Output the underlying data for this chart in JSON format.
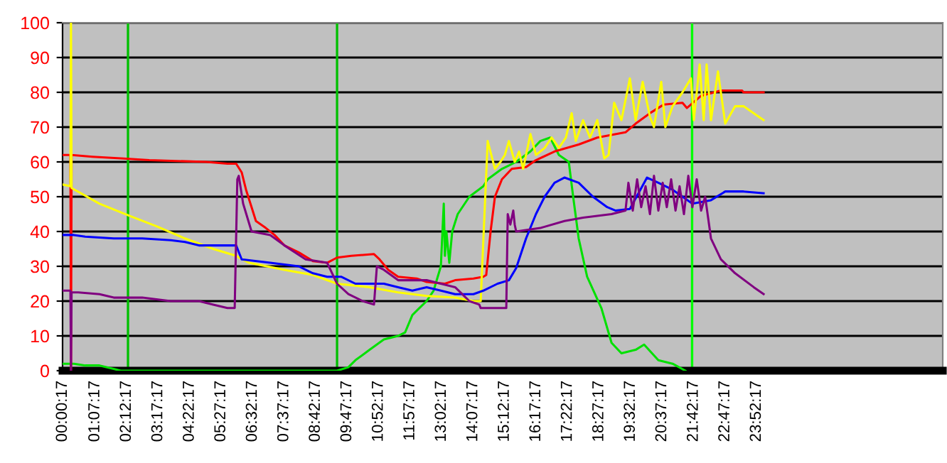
{
  "chart_data": {
    "type": "line",
    "xlim": [
      0,
      30.27
    ],
    "ylim": [
      0,
      100
    ],
    "xticks": [
      {
        "value": 0.00472,
        "label": "00:00:17"
      },
      {
        "value": 1.12139,
        "label": "01:07:17"
      },
      {
        "value": 2.20472,
        "label": "02:12:17"
      },
      {
        "value": 3.28806,
        "label": "03:17:17"
      },
      {
        "value": 4.37139,
        "label": "04:22:17"
      },
      {
        "value": 5.45472,
        "label": "05:27:17"
      },
      {
        "value": 6.53806,
        "label": "06:32:17"
      },
      {
        "value": 7.62139,
        "label": "07:37:17"
      },
      {
        "value": 8.70472,
        "label": "08:42:17"
      },
      {
        "value": 9.78806,
        "label": "09:47:17"
      },
      {
        "value": 10.87139,
        "label": "10:52:17"
      },
      {
        "value": 11.95472,
        "label": "11:57:17"
      },
      {
        "value": 13.03806,
        "label": "13:02:17"
      },
      {
        "value": 14.12139,
        "label": "14:07:17"
      },
      {
        "value": 15.20472,
        "label": "15:12:17"
      },
      {
        "value": 16.28806,
        "label": "16:17:17"
      },
      {
        "value": 17.37139,
        "label": "17:22:17"
      },
      {
        "value": 18.45472,
        "label": "18:27:17"
      },
      {
        "value": 19.53806,
        "label": "19:32:17"
      },
      {
        "value": 20.62139,
        "label": "20:37:17"
      },
      {
        "value": 21.70472,
        "label": "21:42:17"
      },
      {
        "value": 22.78806,
        "label": "22:47:17"
      },
      {
        "value": 23.87139,
        "label": "23:52:17"
      }
    ],
    "yticks": [
      0,
      10,
      20,
      30,
      40,
      50,
      60,
      70,
      80,
      90,
      100
    ],
    "grid": "y",
    "legend": false,
    "marker": "none",
    "line_style": "solid",
    "ref_lines": [
      {
        "axis": "x",
        "value": 2.25,
        "color": "#00c000"
      },
      {
        "axis": "x",
        "value": 9.44,
        "color": "#00c000"
      },
      {
        "axis": "x",
        "value": 21.65,
        "color": "#00ff00"
      }
    ],
    "series": [
      {
        "color": "#00e000",
        "x": [
          0,
          0.39,
          0.78,
          1.27,
          1.76,
          2.0,
          5.0,
          9.44,
          9.83,
          10.07,
          10.56,
          11.05,
          11.54,
          11.78,
          12.03,
          12.27,
          12.52,
          12.76,
          13.01,
          13.11,
          13.15,
          13.2,
          13.3,
          13.4,
          13.59,
          13.99,
          14.47,
          14.62,
          15.11,
          15.6,
          16.09,
          16.43,
          16.77,
          17.07,
          17.41,
          17.56,
          17.75,
          18.04,
          18.53,
          18.88,
          19.22,
          19.71,
          20.0,
          20.49,
          20.98,
          21.42
        ],
        "values": [
          2,
          2,
          1.5,
          1.5,
          0.5,
          0,
          0,
          0,
          1,
          3,
          6,
          9,
          10,
          11,
          16,
          18,
          20,
          23,
          30,
          48,
          33,
          40,
          31,
          40,
          45,
          50,
          53,
          55,
          58,
          60,
          63,
          66,
          67,
          62,
          60,
          50,
          38,
          27,
          18,
          8,
          5,
          6,
          7.5,
          3,
          2,
          0
        ]
      },
      {
        "color": "#ff0000",
        "x": [
          0,
          0.27,
          0.29,
          0.31,
          1.03,
          2.0,
          2.98,
          4.94,
          5.67,
          5.97,
          6.16,
          6.31,
          6.5,
          6.65,
          6.99,
          7.29,
          7.63,
          8.12,
          8.61,
          9.1,
          9.44,
          9.93,
          10.71,
          10.9,
          11.2,
          11.54,
          12.18,
          12.52,
          13.15,
          13.5,
          14.13,
          14.47,
          14.57,
          14.72,
          14.87,
          15.11,
          15.45,
          15.94,
          16.28,
          16.92,
          17.75,
          18.39,
          19.36,
          19.71,
          20.2,
          20.68,
          21.32,
          21.47,
          21.96,
          22.64,
          23.37,
          23.42,
          24.11
        ],
        "values": [
          62,
          62,
          0,
          62,
          61.5,
          61,
          60.5,
          60,
          59.5,
          59.5,
          57,
          52,
          47,
          43,
          41,
          39,
          36,
          34,
          31.5,
          31,
          32.5,
          33,
          33.5,
          32,
          29,
          27,
          26.5,
          25.5,
          25,
          26,
          26.5,
          27,
          27.5,
          40,
          50,
          55,
          58,
          58.5,
          60.5,
          63,
          65,
          67,
          68.5,
          71,
          74,
          76.5,
          77,
          75.5,
          79,
          80.5,
          80.5,
          80,
          80
        ]
      },
      {
        "color": "#ffff00",
        "x": [
          0,
          0.27,
          0.29,
          0.31,
          1.27,
          2.3,
          3.23,
          4.21,
          5.18,
          5.97,
          6.41,
          7.63,
          8.61,
          9.44,
          10.56,
          11.54,
          12.52,
          13.5,
          14.13,
          14.38,
          14.62,
          14.87,
          15.06,
          15.21,
          15.35,
          15.55,
          15.7,
          15.84,
          16.09,
          16.28,
          16.58,
          16.82,
          17.07,
          17.31,
          17.51,
          17.65,
          17.9,
          18.14,
          18.39,
          18.63,
          18.78,
          18.97,
          19.22,
          19.51,
          19.71,
          19.95,
          20.2,
          20.34,
          20.59,
          20.73,
          20.98,
          21.32,
          21.61,
          21.71,
          21.91,
          22.05,
          22.15,
          22.3,
          22.54,
          22.79,
          23.13,
          23.42,
          23.77,
          24.11
        ],
        "values": [
          53.5,
          53,
          100,
          52.5,
          48,
          44.5,
          41.5,
          38,
          35,
          33,
          31,
          29,
          27.5,
          25,
          24,
          22.5,
          21.5,
          21,
          20,
          20,
          66,
          58,
          60,
          62,
          66,
          60,
          63,
          58,
          68,
          62,
          64,
          67,
          64,
          67,
          74,
          66,
          72,
          67,
          72,
          61,
          62,
          77,
          72,
          84,
          72,
          83,
          73,
          70,
          83,
          70,
          76,
          80,
          84,
          72,
          88,
          72,
          88,
          72,
          86,
          71,
          76,
          76,
          74,
          72
        ]
      },
      {
        "color": "#0000ff",
        "x": [
          0,
          0.39,
          0.78,
          1.76,
          2.74,
          3.72,
          4.21,
          4.69,
          5.97,
          6.16,
          7.14,
          8.12,
          8.61,
          9.1,
          9.58,
          10.07,
          11.05,
          11.54,
          12.03,
          12.52,
          13.01,
          13.5,
          13.99,
          14.13,
          14.47,
          14.96,
          15.35,
          15.6,
          15.94,
          16.28,
          16.58,
          16.92,
          17.26,
          17.75,
          18.24,
          18.73,
          19.02,
          19.51,
          20.1,
          20.49,
          20.98,
          21.66,
          22.3,
          22.79,
          23.42,
          24.11
        ],
        "values": [
          39,
          39,
          38.5,
          38,
          38,
          37.5,
          37,
          36,
          36,
          32,
          31,
          30,
          28,
          27,
          27,
          25,
          25,
          24,
          23,
          24,
          23,
          22,
          22,
          22,
          23,
          25,
          26,
          29.5,
          38,
          45,
          50,
          54,
          55.5,
          54,
          50,
          47,
          46,
          46.5,
          55.5,
          54,
          52,
          48,
          49,
          51.5,
          51.5,
          51
        ]
      },
      {
        "color": "#800080",
        "x": [
          0,
          0.27,
          0.29,
          0.31,
          0.54,
          1.27,
          1.76,
          2.74,
          3.23,
          3.72,
          4.69,
          5.18,
          5.67,
          5.92,
          6.01,
          6.06,
          6.21,
          6.5,
          7.14,
          7.63,
          8.36,
          9.1,
          9.44,
          9.83,
          10.32,
          10.71,
          10.81,
          11.05,
          11.54,
          12.52,
          13.01,
          13.5,
          13.99,
          14.33,
          14.38,
          15.26,
          15.31,
          15.4,
          15.5,
          15.55,
          15.6,
          16.43,
          17.26,
          17.9,
          18.88,
          19.36,
          19.46,
          19.61,
          19.76,
          19.9,
          20.05,
          20.2,
          20.34,
          20.49,
          20.64,
          20.78,
          20.93,
          21.08,
          21.22,
          21.37,
          21.52,
          21.66,
          21.81,
          21.96,
          22.1,
          22.15,
          22.3,
          22.64,
          23.13,
          23.77,
          24.11
        ],
        "values": [
          23,
          23,
          0,
          22.5,
          22.5,
          22,
          21,
          21,
          20.5,
          20,
          20,
          19,
          18,
          18,
          55,
          56,
          48,
          40,
          39,
          36,
          32,
          31,
          25,
          22,
          20,
          19,
          30,
          29,
          26,
          26,
          25,
          24,
          20,
          19,
          18,
          18,
          45,
          42,
          46,
          42,
          40,
          41,
          43,
          44,
          45,
          46,
          54,
          46,
          55,
          47,
          53,
          45,
          56,
          46,
          54,
          47,
          55,
          46,
          53,
          45,
          56,
          47,
          55,
          46,
          50,
          47,
          38,
          32,
          28,
          24,
          22
        ]
      }
    ]
  }
}
